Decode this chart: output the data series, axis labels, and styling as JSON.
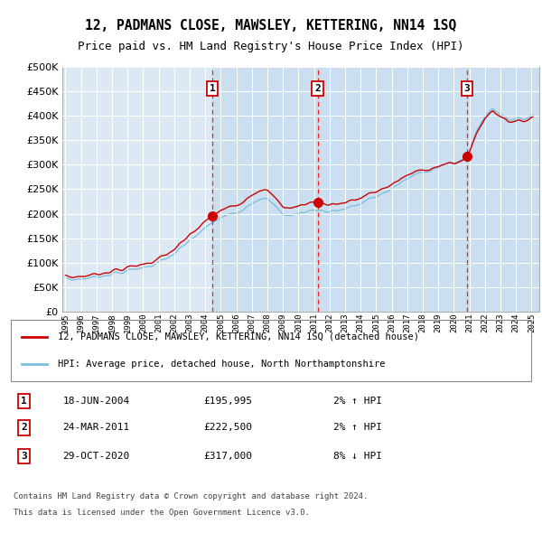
{
  "title": "12, PADMANS CLOSE, MAWSLEY, KETTERING, NN14 1SQ",
  "subtitle": "Price paid vs. HM Land Registry's House Price Index (HPI)",
  "background_color": "#dce9f5",
  "plot_bg_color": "#dce9f5",
  "hpi_color": "#7fbfdf",
  "sale_color": "#cc0000",
  "ylim": [
    0,
    500000
  ],
  "yticks": [
    0,
    50000,
    100000,
    150000,
    200000,
    250000,
    300000,
    350000,
    400000,
    450000,
    500000
  ],
  "sales": [
    {
      "date_num": 2004.46,
      "price": 195995,
      "label": "1"
    },
    {
      "date_num": 2011.23,
      "price": 222500,
      "label": "2"
    },
    {
      "date_num": 2020.83,
      "price": 317000,
      "label": "3"
    }
  ],
  "sale_labels": [
    {
      "num": "1",
      "date": "18-JUN-2004",
      "price": "£195,995",
      "pct": "2%",
      "dir": "↑"
    },
    {
      "num": "2",
      "date": "24-MAR-2011",
      "price": "£222,500",
      "pct": "2%",
      "dir": "↑"
    },
    {
      "num": "3",
      "date": "29-OCT-2020",
      "price": "£317,000",
      "pct": "8%",
      "dir": "↓"
    }
  ],
  "legend_line1": "12, PADMANS CLOSE, MAWSLEY, KETTERING, NN14 1SQ (detached house)",
  "legend_line2": "HPI: Average price, detached house, North Northamptonshire",
  "footer1": "Contains HM Land Registry data © Crown copyright and database right 2024.",
  "footer2": "This data is licensed under the Open Government Licence v3.0."
}
